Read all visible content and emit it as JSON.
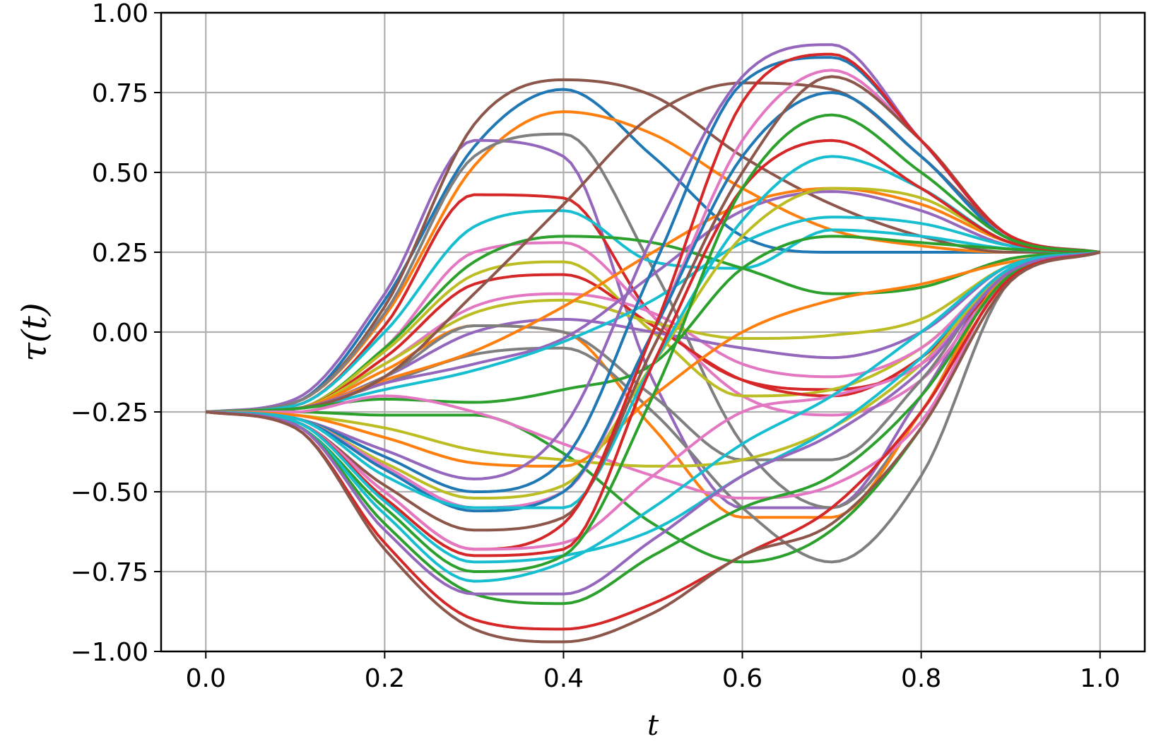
{
  "chart_data": {
    "type": "line",
    "xlabel": "t",
    "ylabel": "τ(t)",
    "xlim": [
      -0.05,
      1.05
    ],
    "ylim": [
      -1.0,
      1.0
    ],
    "xticks": [
      "0.0",
      "0.2",
      "0.4",
      "0.6",
      "0.8",
      "1.0"
    ],
    "yticks": [
      "1.00",
      "0.75",
      "0.50",
      "0.25",
      "0.00",
      "−0.25",
      "−0.50",
      "−0.75",
      "−1.00"
    ],
    "grid": true,
    "legend": "none",
    "start_value": -0.25,
    "end_value": 0.25,
    "x_knots": [
      0.0,
      0.1,
      0.2,
      0.3,
      0.4,
      0.5,
      0.6,
      0.7,
      0.8,
      0.9,
      1.0
    ],
    "series": [
      {
        "color": "#1f77b4",
        "values": [
          -0.25,
          -0.22,
          0.1,
          0.58,
          0.76,
          0.55,
          0.3,
          0.25,
          0.25,
          0.25,
          0.25
        ]
      },
      {
        "color": "#ff7f0e",
        "values": [
          -0.25,
          -0.22,
          0.05,
          0.52,
          0.69,
          0.62,
          0.45,
          0.32,
          0.27,
          0.25,
          0.25
        ]
      },
      {
        "color": "#9467bd",
        "values": [
          -0.25,
          -0.21,
          0.12,
          0.6,
          0.55,
          -0.15,
          -0.55,
          -0.55,
          -0.2,
          0.2,
          0.25
        ]
      },
      {
        "color": "#8c564b",
        "values": [
          -0.25,
          -0.22,
          0.08,
          0.65,
          0.79,
          0.74,
          0.55,
          0.4,
          0.3,
          0.25,
          0.25
        ]
      },
      {
        "color": "#7f7f7f",
        "values": [
          -0.25,
          -0.22,
          0.06,
          0.55,
          0.62,
          0.2,
          -0.35,
          -0.55,
          -0.25,
          0.2,
          0.25
        ]
      },
      {
        "color": "#d62728",
        "values": [
          -0.25,
          -0.23,
          0.02,
          0.43,
          0.42,
          0.05,
          -0.15,
          -0.18,
          -0.1,
          0.18,
          0.25
        ]
      },
      {
        "color": "#17becf",
        "values": [
          -0.25,
          -0.23,
          0.0,
          0.33,
          0.38,
          0.22,
          0.2,
          0.32,
          0.3,
          0.26,
          0.25
        ]
      },
      {
        "color": "#e377c2",
        "values": [
          -0.25,
          -0.24,
          -0.05,
          0.25,
          0.28,
          0.05,
          -0.2,
          -0.26,
          -0.15,
          0.18,
          0.25
        ]
      },
      {
        "color": "#2ca02c",
        "values": [
          -0.25,
          -0.24,
          -0.05,
          0.22,
          0.3,
          0.28,
          0.2,
          0.12,
          0.14,
          0.23,
          0.25
        ]
      },
      {
        "color": "#bcbd22",
        "values": [
          -0.25,
          -0.24,
          -0.06,
          0.18,
          0.22,
          0.0,
          -0.2,
          -0.18,
          -0.05,
          0.19,
          0.25
        ]
      },
      {
        "color": "#d62728",
        "values": [
          -0.25,
          -0.24,
          -0.08,
          0.15,
          0.18,
          0.02,
          -0.15,
          -0.2,
          -0.08,
          0.19,
          0.25
        ]
      },
      {
        "color": "#e377c2",
        "values": [
          -0.25,
          -0.24,
          -0.1,
          0.08,
          0.12,
          0.06,
          -0.1,
          -0.14,
          -0.05,
          0.2,
          0.25
        ]
      },
      {
        "color": "#bcbd22",
        "values": [
          -0.25,
          -0.24,
          -0.1,
          0.06,
          0.1,
          0.03,
          -0.02,
          -0.01,
          0.04,
          0.21,
          0.25
        ]
      },
      {
        "color": "#ff7f0e",
        "values": [
          -0.25,
          -0.24,
          -0.12,
          0.02,
          0.0,
          -0.3,
          -0.58,
          -0.58,
          -0.25,
          0.19,
          0.25
        ]
      },
      {
        "color": "#9467bd",
        "values": [
          -0.25,
          -0.24,
          -0.14,
          0.0,
          0.04,
          0.0,
          -0.05,
          -0.08,
          0.0,
          0.21,
          0.25
        ]
      },
      {
        "color": "#7f7f7f",
        "values": [
          -0.25,
          -0.24,
          -0.14,
          0.02,
          0.0,
          -0.2,
          -0.4,
          -0.4,
          -0.15,
          0.2,
          0.25
        ]
      },
      {
        "color": "#7f7f7f",
        "values": [
          -0.25,
          -0.24,
          -0.16,
          -0.07,
          -0.05,
          -0.25,
          -0.55,
          -0.72,
          -0.45,
          0.16,
          0.25
        ]
      },
      {
        "color": "#ff7f0e",
        "values": [
          -0.25,
          -0.24,
          -0.15,
          -0.06,
          0.08,
          0.25,
          0.4,
          0.45,
          0.4,
          0.28,
          0.25
        ]
      },
      {
        "color": "#9467bd",
        "values": [
          -0.25,
          -0.24,
          -0.16,
          -0.1,
          -0.02,
          0.18,
          0.38,
          0.44,
          0.38,
          0.27,
          0.25
        ]
      },
      {
        "color": "#17becf",
        "values": [
          -0.25,
          -0.24,
          -0.18,
          -0.12,
          -0.03,
          0.1,
          0.28,
          0.36,
          0.34,
          0.27,
          0.25
        ]
      },
      {
        "color": "#8c564b",
        "values": [
          -0.25,
          -0.24,
          -0.14,
          0.12,
          0.4,
          0.68,
          0.78,
          0.76,
          0.55,
          0.3,
          0.25
        ]
      },
      {
        "color": "#2ca02c",
        "values": [
          -0.25,
          -0.24,
          -0.21,
          -0.22,
          -0.18,
          -0.1,
          0.2,
          0.3,
          0.28,
          0.26,
          0.25
        ]
      },
      {
        "color": "#2ca02c",
        "values": [
          -0.25,
          -0.25,
          -0.26,
          -0.26,
          -0.38,
          -0.6,
          -0.72,
          -0.62,
          -0.3,
          0.18,
          0.25
        ]
      },
      {
        "color": "#e377c2",
        "values": [
          -0.25,
          -0.25,
          -0.2,
          -0.25,
          -0.35,
          -0.45,
          -0.52,
          -0.48,
          -0.28,
          0.18,
          0.25
        ]
      },
      {
        "color": "#bcbd22",
        "values": [
          -0.25,
          -0.26,
          -0.3,
          -0.37,
          -0.4,
          -0.42,
          -0.4,
          -0.3,
          -0.1,
          0.2,
          0.25
        ]
      },
      {
        "color": "#ff7f0e",
        "values": [
          -0.25,
          -0.26,
          -0.33,
          -0.41,
          -0.42,
          -0.2,
          0.0,
          0.1,
          0.15,
          0.22,
          0.25
        ]
      },
      {
        "color": "#9467bd",
        "values": [
          -0.25,
          -0.27,
          -0.37,
          -0.46,
          -0.3,
          0.3,
          0.8,
          0.9,
          0.6,
          0.3,
          0.25
        ]
      },
      {
        "color": "#1f77b4",
        "values": [
          -0.25,
          -0.27,
          -0.39,
          -0.5,
          -0.4,
          0.2,
          0.78,
          0.86,
          0.6,
          0.3,
          0.25
        ]
      },
      {
        "color": "#bcbd22",
        "values": [
          -0.25,
          -0.27,
          -0.41,
          -0.52,
          -0.48,
          -0.1,
          0.3,
          0.45,
          0.42,
          0.28,
          0.25
        ]
      },
      {
        "color": "#e377c2",
        "values": [
          -0.25,
          -0.27,
          -0.42,
          -0.55,
          -0.5,
          0.0,
          0.6,
          0.82,
          0.6,
          0.3,
          0.25
        ]
      },
      {
        "color": "#1f77b4",
        "values": [
          -0.25,
          -0.27,
          -0.43,
          -0.56,
          -0.5,
          0.0,
          0.55,
          0.75,
          0.55,
          0.29,
          0.25
        ]
      },
      {
        "color": "#17becf",
        "values": [
          -0.25,
          -0.27,
          -0.45,
          -0.55,
          -0.55,
          -0.1,
          0.35,
          0.55,
          0.45,
          0.28,
          0.25
        ]
      },
      {
        "color": "#8c564b",
        "values": [
          -0.25,
          -0.28,
          -0.48,
          -0.62,
          -0.58,
          -0.05,
          0.5,
          0.8,
          0.6,
          0.3,
          0.25
        ]
      },
      {
        "color": "#d62728",
        "values": [
          -0.25,
          -0.28,
          -0.5,
          -0.68,
          -0.6,
          0.0,
          0.72,
          0.87,
          0.6,
          0.3,
          0.25
        ]
      },
      {
        "color": "#e377c2",
        "values": [
          -0.25,
          -0.28,
          -0.5,
          -0.68,
          -0.66,
          -0.45,
          -0.25,
          -0.2,
          -0.1,
          0.19,
          0.25
        ]
      },
      {
        "color": "#d62728",
        "values": [
          -0.25,
          -0.28,
          -0.52,
          -0.7,
          -0.68,
          -0.1,
          0.45,
          0.6,
          0.45,
          0.28,
          0.25
        ]
      },
      {
        "color": "#17becf",
        "values": [
          -0.25,
          -0.28,
          -0.53,
          -0.72,
          -0.7,
          -0.62,
          -0.45,
          -0.3,
          -0.08,
          0.2,
          0.25
        ]
      },
      {
        "color": "#2ca02c",
        "values": [
          -0.25,
          -0.29,
          -0.55,
          -0.75,
          -0.7,
          -0.2,
          0.45,
          0.68,
          0.5,
          0.29,
          0.25
        ]
      },
      {
        "color": "#17becf",
        "values": [
          -0.25,
          -0.29,
          -0.57,
          -0.78,
          -0.72,
          -0.55,
          -0.35,
          -0.2,
          0.0,
          0.21,
          0.25
        ]
      },
      {
        "color": "#2ca02c",
        "values": [
          -0.25,
          -0.29,
          -0.6,
          -0.82,
          -0.85,
          -0.7,
          -0.55,
          -0.45,
          -0.2,
          0.18,
          0.25
        ]
      },
      {
        "color": "#9467bd",
        "values": [
          -0.25,
          -0.29,
          -0.62,
          -0.82,
          -0.82,
          -0.65,
          -0.45,
          -0.32,
          -0.12,
          0.19,
          0.25
        ]
      },
      {
        "color": "#d62728",
        "values": [
          -0.25,
          -0.3,
          -0.66,
          -0.9,
          -0.93,
          -0.85,
          -0.7,
          -0.55,
          -0.25,
          0.17,
          0.25
        ]
      },
      {
        "color": "#8c564b",
        "values": [
          -0.25,
          -0.3,
          -0.68,
          -0.93,
          -0.97,
          -0.88,
          -0.7,
          -0.6,
          -0.3,
          0.16,
          0.25
        ]
      }
    ]
  }
}
